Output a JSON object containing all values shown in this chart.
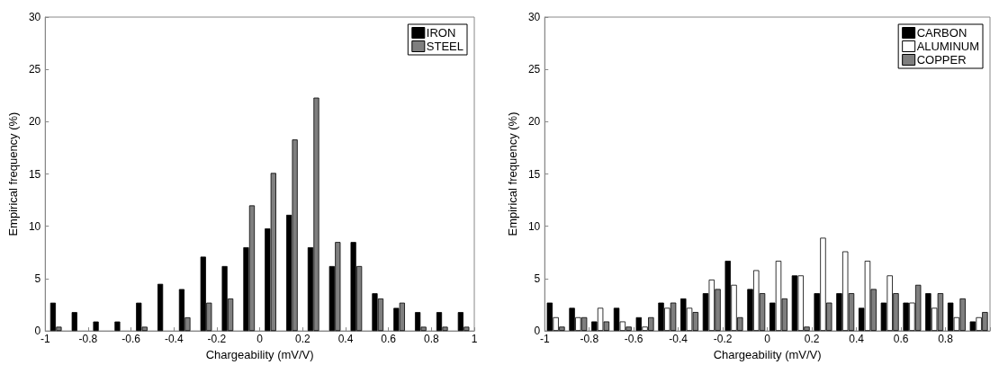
{
  "chart_data": [
    {
      "type": "bar",
      "xlabel": "Chargeability (mV/V)",
      "ylabel": "Empirical frequency (%)",
      "x": [
        -0.95,
        -0.85,
        -0.75,
        -0.65,
        -0.55,
        -0.45,
        -0.35,
        -0.25,
        -0.15,
        -0.05,
        0.05,
        0.15,
        0.25,
        0.35,
        0.45,
        0.55,
        0.65,
        0.75,
        0.85,
        0.95
      ],
      "series": [
        {
          "name": "IRON",
          "color": "#000000",
          "values": [
            2.7,
            1.8,
            0.9,
            0.9,
            2.7,
            4.5,
            4.0,
            7.1,
            6.2,
            8.0,
            9.8,
            11.1,
            8.0,
            6.2,
            8.5,
            3.6,
            2.2,
            1.8,
            1.8,
            1.8
          ]
        },
        {
          "name": "STEEL",
          "color": "#7f7f7f",
          "values": [
            0.4,
            0,
            0,
            0,
            0.4,
            0,
            1.3,
            2.7,
            3.1,
            12.0,
            15.1,
            18.3,
            22.3,
            8.5,
            6.2,
            3.1,
            2.7,
            0.4,
            0.4,
            0.4
          ]
        }
      ],
      "xlim": [
        -1,
        1
      ],
      "xticks": [
        -1,
        -0.8,
        -0.6,
        -0.4,
        -0.2,
        0,
        0.2,
        0.4,
        0.6,
        0.8,
        1
      ],
      "ylim": [
        0,
        30
      ],
      "yticks": [
        0,
        5,
        10,
        15,
        20,
        25,
        30
      ],
      "grid": false,
      "legend": "top right"
    },
    {
      "type": "bar",
      "xlabel": "Chargeability (mV/V)",
      "ylabel": "Empirical frequency (%)",
      "x": [
        -0.95,
        -0.85,
        -0.75,
        -0.65,
        -0.55,
        -0.45,
        -0.35,
        -0.25,
        -0.15,
        -0.05,
        0.05,
        0.15,
        0.25,
        0.35,
        0.45,
        0.55,
        0.65,
        0.75,
        0.85,
        0.95
      ],
      "series": [
        {
          "name": "CARBON",
          "color": "#000000",
          "values": [
            2.7,
            2.2,
            0.9,
            2.2,
            1.3,
            2.7,
            3.1,
            3.6,
            6.7,
            4.0,
            2.7,
            5.3,
            3.6,
            3.6,
            2.2,
            2.7,
            2.7,
            3.6,
            2.7,
            0.9
          ]
        },
        {
          "name": "ALUMINUM",
          "color": "#ffffff",
          "values": [
            1.3,
            1.3,
            2.2,
            0.9,
            0.4,
            2.2,
            2.2,
            4.9,
            4.4,
            5.8,
            6.7,
            5.3,
            8.9,
            7.6,
            6.7,
            5.3,
            2.7,
            2.2,
            1.3,
            1.3
          ]
        },
        {
          "name": "COPPER",
          "color": "#7f7f7f",
          "values": [
            0.4,
            1.3,
            0.9,
            0.4,
            1.3,
            2.7,
            1.8,
            4.0,
            1.3,
            3.6,
            3.1,
            0.4,
            2.7,
            3.6,
            4.0,
            3.6,
            4.4,
            3.6,
            3.1,
            1.8
          ]
        }
      ],
      "xlim": [
        -1,
        1
      ],
      "xticks": [
        -1,
        -0.8,
        -0.6,
        -0.4,
        -0.2,
        0,
        0.2,
        0.4,
        0.6,
        0.8,
        {
          "value": 1,
          "label": null
        }
      ],
      "ylim": [
        0,
        30
      ],
      "yticks": [
        0,
        5,
        10,
        15,
        20,
        25,
        30
      ],
      "grid": false,
      "legend": "top right"
    }
  ]
}
